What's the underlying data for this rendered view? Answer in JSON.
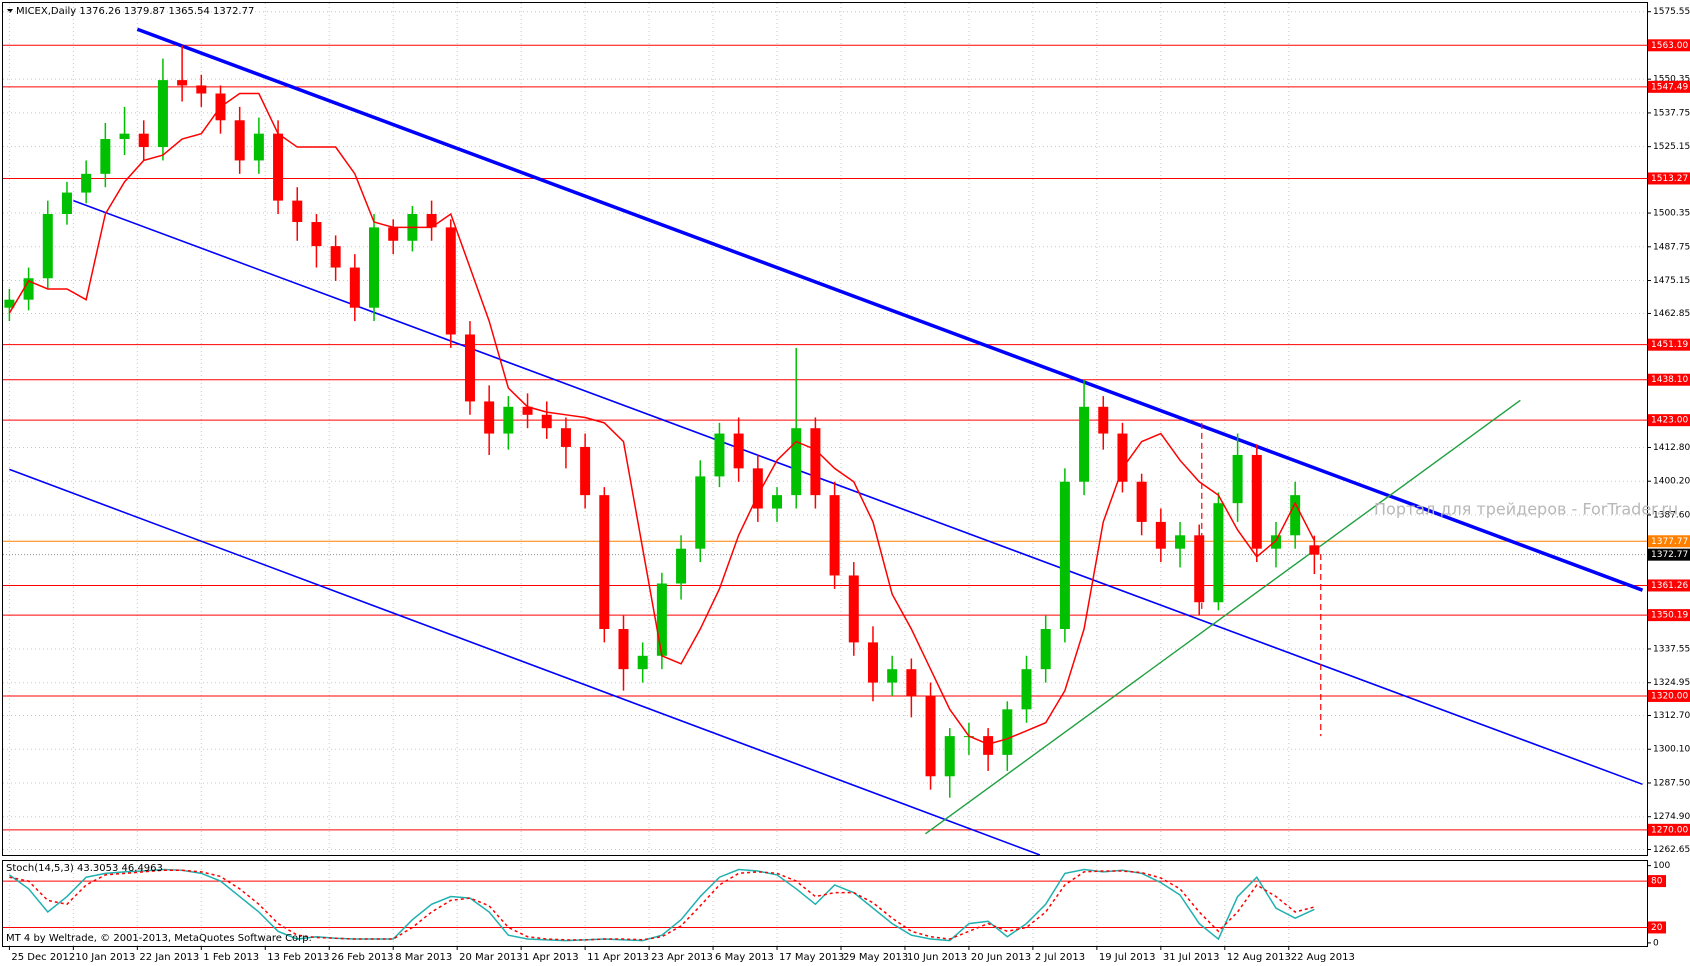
{
  "chart_data": [
    {
      "type": "candlestick",
      "title": "MICEX,Daily  1376.26 1379.87 1365.54 1372.77",
      "watermark": "Портал для трейдеров - ForTrader.ru",
      "footer": "MT 4 by Weltrade, © 2001-2013, MetaQuotes Software Corp.",
      "grid": true,
      "up_color": "#00c000",
      "down_color": "#ff0000",
      "xlim": [
        -1,
        256
      ],
      "ylim": [
        1260.6,
        1578.8
      ],
      "xticks": [
        {
          "value": 0,
          "label": "25 Dec 2012"
        },
        {
          "value": 10,
          "label": "10 Jan 2013"
        },
        {
          "value": 20,
          "label": "22 Jan 2013"
        },
        {
          "value": 30,
          "label": "1 Feb 2013"
        },
        {
          "value": 40,
          "label": "13 Feb 2013"
        },
        {
          "value": 50,
          "label": "26 Feb 2013"
        },
        {
          "value": 60,
          "label": "8 Mar 2013"
        },
        {
          "value": 70,
          "label": "20 Mar 2013"
        },
        {
          "value": 80,
          "label": "1 Apr 2013"
        },
        {
          "value": 90,
          "label": "11 Apr 2013"
        },
        {
          "value": 100,
          "label": "23 Apr 2013"
        },
        {
          "value": 110,
          "label": "6 May 2013"
        },
        {
          "value": 120,
          "label": "17 May 2013"
        },
        {
          "value": 130,
          "label": "29 May 2013"
        },
        {
          "value": 140,
          "label": "10 Jun 2013"
        },
        {
          "value": 150,
          "label": "20 Jun 2013"
        },
        {
          "value": 160,
          "label": "2 Jul 2013"
        },
        {
          "value": 170,
          "label": "19 Jul 2013"
        },
        {
          "value": 180,
          "label": "31 Jul 2013"
        },
        {
          "value": 190,
          "label": "12 Aug 2013"
        },
        {
          "value": 200,
          "label": "22 Aug 2013"
        }
      ],
      "yticks": [
        {
          "value": 1575.55,
          "label": "1575.55"
        },
        {
          "value": 1550.35,
          "label": "1550.35"
        },
        {
          "value": 1537.75,
          "label": "1537.75"
        },
        {
          "value": 1525.15,
          "label": "1525.15"
        },
        {
          "value": 1500.35,
          "label": "1500.35"
        },
        {
          "value": 1487.75,
          "label": "1487.75"
        },
        {
          "value": 1475.15,
          "label": "1475.15"
        },
        {
          "value": 1462.85,
          "label": "1462.85"
        },
        {
          "value": 1412.8,
          "label": "1412.80"
        },
        {
          "value": 1400.2,
          "label": "1400.20"
        },
        {
          "value": 1387.6,
          "label": "1387.60"
        },
        {
          "value": 1337.55,
          "label": "1337.55"
        },
        {
          "value": 1324.95,
          "label": "1324.95"
        },
        {
          "value": 1312.7,
          "label": "1312.70"
        },
        {
          "value": 1300.1,
          "label": "1300.10"
        },
        {
          "value": 1287.5,
          "label": "1287.50"
        },
        {
          "value": 1274.9,
          "label": "1274.90"
        },
        {
          "value": 1262.65,
          "label": "1262.65"
        }
      ],
      "levels": [
        {
          "value": 1563,
          "label": "1563.00",
          "color": "#ff0000"
        },
        {
          "value": 1547.49,
          "label": "1547.49",
          "color": "#ff0000"
        },
        {
          "value": 1513.27,
          "label": "1513.27",
          "color": "#ff0000"
        },
        {
          "value": 1451.19,
          "label": "1451.19",
          "color": "#ff0000"
        },
        {
          "value": 1438.1,
          "label": "1438.10",
          "color": "#ff0000"
        },
        {
          "value": 1423,
          "label": "1423.00",
          "color": "#ff0000"
        },
        {
          "value": 1377.77,
          "label": "1377.77",
          "color": "#ff8000"
        },
        {
          "value": 1372.77,
          "label": "1372.77",
          "color": "#000000"
        },
        {
          "value": 1361.26,
          "label": "1361.26",
          "color": "#ff0000"
        },
        {
          "value": 1350.19,
          "label": "1350.19",
          "color": "#ff0000"
        },
        {
          "value": 1320,
          "label": "1320.00",
          "color": "#ff0000"
        },
        {
          "value": 1270,
          "label": "1270.00",
          "color": "#ff0000"
        }
      ],
      "x": [
        0,
        3,
        6,
        9,
        12,
        15,
        18,
        21,
        24,
        27,
        30,
        33,
        36,
        39,
        42,
        45,
        48,
        51,
        54,
        57,
        60,
        63,
        66,
        69,
        72,
        75,
        78,
        81,
        84,
        87,
        90,
        93,
        96,
        99,
        102,
        105,
        108,
        111,
        114,
        117,
        120,
        123,
        126,
        129,
        132,
        135,
        138,
        141,
        144,
        147,
        150,
        153,
        156,
        159,
        162,
        165,
        168,
        171,
        174,
        177,
        180,
        183,
        186,
        189,
        192,
        195,
        198,
        201,
        204
      ],
      "open": [
        1465,
        1468,
        1476,
        1500,
        1508,
        1515,
        1528,
        1530,
        1525,
        1550,
        1548,
        1545,
        1535,
        1520,
        1530,
        1505,
        1497,
        1488,
        1480,
        1465,
        1495,
        1490,
        1500,
        1495,
        1455,
        1430,
        1418,
        1428,
        1425,
        1420,
        1413,
        1395,
        1345,
        1330,
        1335,
        1362,
        1375,
        1402,
        1418,
        1405,
        1390,
        1395,
        1420,
        1395,
        1365,
        1340,
        1325,
        1330,
        1320,
        1290,
        1305,
        1305,
        1298,
        1315,
        1330,
        1345,
        1400,
        1428,
        1418,
        1400,
        1385,
        1375,
        1380,
        1355,
        1392,
        1410,
        1375,
        1380,
        1376.26
      ],
      "high": [
        1472,
        1480,
        1505,
        1512,
        1520,
        1534,
        1540,
        1535,
        1558,
        1563,
        1552,
        1548,
        1540,
        1536,
        1535,
        1510,
        1500,
        1492,
        1485,
        1500,
        1498,
        1503,
        1505,
        1498,
        1460,
        1436,
        1432,
        1433,
        1430,
        1424,
        1418,
        1398,
        1350,
        1340,
        1366,
        1380,
        1408,
        1422,
        1424,
        1410,
        1398,
        1450,
        1424,
        1400,
        1370,
        1346,
        1335,
        1334,
        1325,
        1308,
        1310,
        1308,
        1318,
        1335,
        1350,
        1405,
        1438,
        1432,
        1422,
        1403,
        1390,
        1385,
        1384,
        1396,
        1418,
        1414,
        1385,
        1400,
        1379.87
      ],
      "low": [
        1460,
        1464,
        1472,
        1496,
        1504,
        1510,
        1522,
        1520,
        1520,
        1542,
        1540,
        1530,
        1515,
        1515,
        1500,
        1490,
        1480,
        1475,
        1460,
        1460,
        1485,
        1486,
        1490,
        1450,
        1425,
        1410,
        1412,
        1420,
        1416,
        1405,
        1390,
        1340,
        1322,
        1325,
        1330,
        1356,
        1370,
        1398,
        1400,
        1385,
        1385,
        1390,
        1390,
        1360,
        1335,
        1318,
        1320,
        1312,
        1285,
        1282,
        1298,
        1292,
        1292,
        1310,
        1325,
        1340,
        1395,
        1412,
        1396,
        1380,
        1370,
        1368,
        1350,
        1352,
        1385,
        1370,
        1368,
        1375,
        1365.54
      ],
      "close": [
        1468,
        1476,
        1500,
        1508,
        1515,
        1528,
        1530,
        1525,
        1550,
        1548,
        1545,
        1535,
        1520,
        1530,
        1505,
        1497,
        1488,
        1480,
        1465,
        1495,
        1490,
        1500,
        1495,
        1455,
        1430,
        1418,
        1428,
        1425,
        1420,
        1413,
        1395,
        1345,
        1330,
        1335,
        1362,
        1375,
        1402,
        1418,
        1405,
        1390,
        1395,
        1420,
        1395,
        1365,
        1340,
        1325,
        1330,
        1320,
        1290,
        1305,
        1305,
        1298,
        1315,
        1330,
        1345,
        1400,
        1428,
        1418,
        1400,
        1385,
        1375,
        1380,
        1355,
        1392,
        1410,
        1375,
        1380,
        1395,
        1372.77
      ],
      "series": [
        {
          "color": "#ff0000",
          "values": [
            1463,
            1475,
            1472,
            1472,
            1468,
            1500,
            1512,
            1520,
            1522,
            1528,
            1530,
            1540,
            1545,
            1545,
            1530,
            1525,
            1525,
            1525,
            1515,
            1497,
            1495,
            1495,
            1495,
            1500,
            1480,
            1460,
            1435,
            1428,
            1426,
            1425,
            1424,
            1422,
            1415,
            1375,
            1335,
            1332,
            1345,
            1360,
            1380,
            1395,
            1408,
            1415,
            1412,
            1405,
            1400,
            1385,
            1358,
            1345,
            1330,
            1315,
            1305,
            1302,
            1304,
            1307,
            1310,
            1322,
            1345,
            1385,
            1405,
            1415,
            1418,
            1408,
            1400,
            1395,
            1382,
            1372,
            1378,
            1392,
            1378
          ]
        }
      ],
      "trendlines": [
        {
          "color": "#0000ff",
          "width": 3.5,
          "dash": false,
          "x": [
            20,
            255.3
          ],
          "y": [
            1569,
            1359.5
          ]
        },
        {
          "color": "#0000ff",
          "width": 1.6,
          "dash": false,
          "x": [
            10,
            255.3
          ],
          "y": [
            1505,
            1287
          ]
        },
        {
          "color": "#0000ff",
          "width": 1.6,
          "dash": false,
          "x": [
            0,
            161.1
          ],
          "y": [
            1404.6,
            1260.6
          ]
        },
        {
          "color": "#20a040",
          "width": 1.4,
          "dash": false,
          "x": [
            143.2,
            236.2
          ],
          "y": [
            1268.5,
            1430.4
          ]
        },
        {
          "color": "#ff0000",
          "width": 1.2,
          "dash": true,
          "x": [
            205,
            205
          ],
          "y": [
            1373,
            1305
          ]
        },
        {
          "color": "#ff0000",
          "width": 1.2,
          "dash": true,
          "x": [
            186.4,
            186.4
          ],
          "y": [
            1422,
            1352
          ]
        }
      ]
    },
    {
      "type": "line",
      "title": "Stoch(14,5,3) 43.3053 46.4963",
      "ylim": [
        -4,
        106
      ],
      "yticks": [
        100,
        0
      ],
      "levels": [
        80,
        20
      ],
      "level_color": "#ff0000",
      "series": [
        {
          "color": "#20b0b0",
          "dash": false,
          "values": [
            88,
            70,
            40,
            60,
            85,
            90,
            92,
            93,
            95,
            94,
            90,
            80,
            60,
            40,
            15,
            5,
            8,
            6,
            5,
            5,
            5,
            30,
            50,
            60,
            58,
            40,
            10,
            5,
            4,
            3,
            4,
            5,
            4,
            3,
            10,
            30,
            60,
            85,
            95,
            93,
            88,
            70,
            50,
            75,
            65,
            45,
            25,
            10,
            5,
            3,
            25,
            28,
            8,
            25,
            50,
            90,
            95,
            92,
            94,
            90,
            78,
            62,
            25,
            5,
            60,
            85,
            45,
            32,
            43.3053
          ]
        },
        {
          "color": "#ff0000",
          "dash": true,
          "values": [
            85,
            80,
            55,
            50,
            75,
            88,
            90,
            92,
            94,
            94,
            92,
            86,
            70,
            50,
            25,
            10,
            7,
            6,
            5,
            5,
            5,
            20,
            40,
            55,
            58,
            48,
            20,
            8,
            5,
            4,
            4,
            5,
            5,
            4,
            8,
            22,
            48,
            75,
            90,
            92,
            90,
            80,
            60,
            65,
            65,
            52,
            32,
            15,
            8,
            5,
            15,
            25,
            15,
            20,
            40,
            75,
            92,
            93,
            93,
            91,
            84,
            70,
            40,
            15,
            40,
            75,
            60,
            40,
            46.4963
          ]
        }
      ]
    }
  ]
}
